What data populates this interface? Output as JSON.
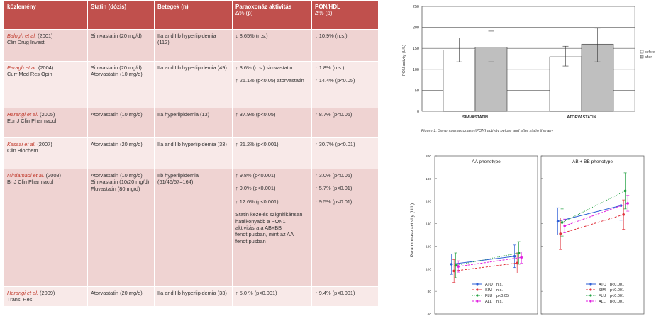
{
  "table": {
    "headers": {
      "col1": "közlemény",
      "col2": "Statin (dózis)",
      "col3": "Betegek (n)",
      "col4_title": "Paraoxonáz aktivitás",
      "col4_sub": "Δ% (p)",
      "col5_title": "PON/HDL",
      "col5_sub": "Δ% (p)"
    },
    "rows": [
      {
        "author": "Balogh et al.",
        "year": "(2001)",
        "journal": "Clin Drug Invest",
        "statin": [
          "Simvastatin (20 mg/d)"
        ],
        "patients": "IIa and IIb hyperlipidemia (112)",
        "pon": [
          "↓ 8.65% (n.s.)"
        ],
        "ponhdl": [
          "↓ 10.9% (n.s.)"
        ]
      },
      {
        "author": "Paragh et al.",
        "year": "(2004)",
        "journal": "Curr Med Res Opin",
        "statin": [
          "Simvastatin (20 mg/d)",
          "Atorvastatin (10 mg/d)"
        ],
        "patients": "IIa and IIb hyperlipidemia (49)",
        "pon": [
          "↑ 3.6% (n.s.) simvastatin",
          "↑ 25.1% (p<0.05) atorvastatin"
        ],
        "ponhdl": [
          "↑ 1.8% (n.s.)",
          "↑ 14.4% (p<0.05)"
        ]
      },
      {
        "author": "Harangi et al.",
        "year": "(2005)",
        "journal": "Eur J Clin Pharmacol",
        "statin": [
          "Atorvastatin (10 mg/d)"
        ],
        "patients": "IIa hyperlipidemia (13)",
        "pon": [
          "↑ 37.9% (p<0.05)"
        ],
        "ponhdl": [
          "↑ 8.7% (p<0.05)"
        ]
      },
      {
        "author": "Kassai et al.",
        "year": "(2007)",
        "journal": "Clin Biochem",
        "statin": [
          "Atorvastatin (20 mg/d)"
        ],
        "patients": "IIa and IIb hyperlipidemia (33)",
        "pon": [
          "↑ 21.2% (p<0.001)"
        ],
        "ponhdl": [
          "↑ 30.7% (p<0.01)"
        ]
      },
      {
        "author": "Mirdamadi et al.",
        "year": "(2008)",
        "journal": "Br J Clin Pharmacol",
        "statin": [
          "Atorvastatin (10 mg/d)",
          "Simvastatin (10/20 mg/d)",
          "Fluvastatin (80 mg/d)"
        ],
        "patients": "IIb hyperlipidemia (61/46/57=164)",
        "pon": [
          "↑ 9.8% (p<0.001)",
          "↑ 9.0% (p<0.001)",
          "↑ 12.6% (p<0.001)",
          "Statin kezelés szignifikánsan hatékonyabb a PON1 aktivitásra a AB+BB fenotípusban, mint az AA fenotípusban"
        ],
        "ponhdl": [
          "↑ 3.0% (p<0.05)",
          "↑ 5.7% (p<0.01)",
          "↑ 9.5% (p<0.01)"
        ]
      },
      {
        "author": "Harangi et al.",
        "year": "(2009)",
        "journal": "Transl Res",
        "statin": [
          "Atorvastatin (20 mg/d)"
        ],
        "patients": "IIa and IIb hyperlipidemia (33)",
        "pon": [
          "↑ 5.0 % (p<0.001)"
        ],
        "ponhdl": [
          "↑ 9.4% (p<0.001)"
        ]
      }
    ]
  },
  "chart_data": [
    {
      "type": "bar",
      "title": "",
      "caption": "Figure 1. Serum paraoxonase (PON) activity before and after statin therapy",
      "ylabel": "PON activity (U/L)",
      "xlabel": "",
      "ylim": [
        0,
        250
      ],
      "yticks": [
        "0",
        "50",
        "100",
        "150",
        "200",
        "250"
      ],
      "categories": [
        "SIMVASTATIN",
        "ATORVASTATIN"
      ],
      "legend": {
        "position": "right",
        "labels": [
          "before",
          "after"
        ]
      },
      "series": [
        {
          "name": "before",
          "color": "#ffffff",
          "values": [
            146,
            130
          ],
          "err_low": [
            118,
            108
          ],
          "err_high": [
            175,
            155
          ]
        },
        {
          "name": "after",
          "color": "#bfbfbf",
          "values": [
            153,
            160
          ],
          "err_low": [
            118,
            118
          ],
          "err_high": [
            191,
            198
          ]
        }
      ],
      "grid": true
    },
    {
      "type": "line",
      "ylabel": "Paraoxonase activity (U/L)",
      "ylim": [
        60,
        200
      ],
      "yticks": [
        "60",
        "80",
        "100",
        "120",
        "140",
        "160",
        "180",
        "200"
      ],
      "panels": [
        {
          "title": "AA phenotype",
          "x": [
            "Before",
            "After"
          ],
          "series": [
            {
              "name": "ATO",
              "sig": "n.s.",
              "color": "#2e5fd6",
              "values": [
                104,
                111
              ],
              "err": [
                9,
                10
              ]
            },
            {
              "name": "SIM",
              "sig": "n.s.",
              "color": "#e0303a",
              "values": [
                98,
                105
              ],
              "err": [
                10,
                9
              ]
            },
            {
              "name": "FLU",
              "sig": "p<0.05",
              "color": "#20a040",
              "values": [
                103,
                114
              ],
              "err": [
                11,
                10
              ]
            },
            {
              "name": "ALL",
              "sig": "n.s.",
              "color": "#e020e0",
              "values": [
                102,
                110
              ],
              "err": [
                5,
                5
              ]
            }
          ]
        },
        {
          "title": "AB + BB phenotype",
          "x": [
            "Before",
            "After"
          ],
          "series": [
            {
              "name": "ATO",
              "sig": "p<0.001",
              "color": "#2e5fd6",
              "values": [
                142,
                156
              ],
              "err": [
                12,
                13
              ]
            },
            {
              "name": "SIM",
              "sig": "p<0.001",
              "color": "#e0303a",
              "values": [
                131,
                148
              ],
              "err": [
                14,
                13
              ]
            },
            {
              "name": "FLU",
              "sig": "p<0.001",
              "color": "#20a040",
              "values": [
                141,
                169
              ],
              "err": [
                12,
                16
              ]
            },
            {
              "name": "ALL",
              "sig": "p<0.001",
              "color": "#e020e0",
              "values": [
                138,
                158
              ],
              "err": [
                6,
                7
              ]
            }
          ]
        }
      ]
    }
  ]
}
